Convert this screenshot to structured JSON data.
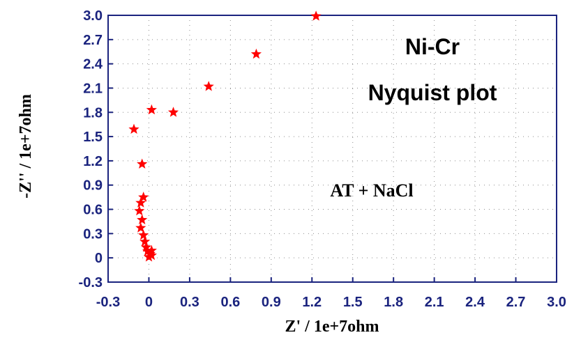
{
  "chart_data": {
    "type": "scatter",
    "title": "",
    "xlabel": "Z' / 1e+7ohm",
    "ylabel": "-Z'' / 1e+7ohm",
    "xlim": [
      -0.3,
      3.0
    ],
    "ylim": [
      -0.3,
      3.0
    ],
    "x_ticks": [
      "-0.3",
      "0",
      "0.3",
      "0.6",
      "0.9",
      "1.2",
      "1.5",
      "1.8",
      "2.1",
      "2.4",
      "2.7",
      "3.0"
    ],
    "y_ticks": [
      "-0.3",
      "0",
      "0.3",
      "0.6",
      "0.9",
      "1.2",
      "1.5",
      "1.8",
      "2.1",
      "2.4",
      "2.7",
      "3.0"
    ],
    "grid": true,
    "annotations": [
      "Ni-Cr",
      "Nyquist plot",
      "AT + NaCl"
    ],
    "colors": {
      "marker": "#ff0000",
      "axis": "#1a237e",
      "grid": "#8c8c8c"
    },
    "marker": "star",
    "series": [
      {
        "points": [
          {
            "x": 1.23,
            "y": 2.99
          },
          {
            "x": 0.79,
            "y": 2.52
          },
          {
            "x": 0.44,
            "y": 2.12
          },
          {
            "x": 0.18,
            "y": 1.8
          },
          {
            "x": 0.02,
            "y": 1.83
          },
          {
            "x": -0.11,
            "y": 1.59
          },
          {
            "x": -0.05,
            "y": 1.16
          },
          {
            "x": -0.04,
            "y": 0.75
          },
          {
            "x": -0.06,
            "y": 0.68
          },
          {
            "x": -0.07,
            "y": 0.58
          },
          {
            "x": -0.05,
            "y": 0.47
          },
          {
            "x": -0.06,
            "y": 0.37
          },
          {
            "x": -0.04,
            "y": 0.28
          },
          {
            "x": -0.03,
            "y": 0.2
          },
          {
            "x": -0.02,
            "y": 0.13
          },
          {
            "x": -0.01,
            "y": 0.08
          },
          {
            "x": 0.01,
            "y": 0.05
          },
          {
            "x": 0.02,
            "y": 0.03
          },
          {
            "x": 0.0,
            "y": 0.01
          },
          {
            "x": 0.02,
            "y": 0.09
          }
        ]
      }
    ]
  }
}
